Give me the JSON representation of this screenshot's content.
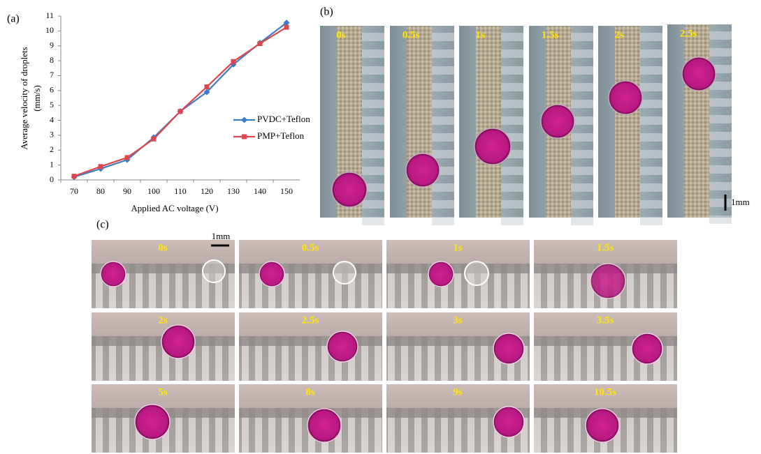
{
  "panel_labels": [
    "(a)",
    "(b)",
    "(c)"
  ],
  "chart_data": {
    "type": "line",
    "xlabel": "Applied AC voltage (V)",
    "ylabel": [
      "Average velocity of droplets",
      "(mm/s)"
    ],
    "categories": [
      "70",
      "80",
      "90",
      "100",
      "110",
      "120",
      "130",
      "140",
      "150"
    ],
    "series": [
      {
        "name": "PVDC+Teflon",
        "color": "#3a7dc9",
        "marker": "diamond",
        "values": [
          0.2,
          0.75,
          1.35,
          2.85,
          4.6,
          5.9,
          7.75,
          9.2,
          10.55
        ]
      },
      {
        "name": "PMP+Teflon",
        "color": "#e0474c",
        "marker": "square",
        "values": [
          0.25,
          0.9,
          1.5,
          2.75,
          4.6,
          6.25,
          7.95,
          9.15,
          10.25
        ]
      }
    ],
    "ylim": [
      0,
      11
    ],
    "yticks": [
      0,
      1,
      2,
      3,
      4,
      5,
      6,
      7,
      8,
      9,
      10,
      11
    ],
    "grid": false
  },
  "panel_b": {
    "times": [
      "0s",
      "0.5s",
      "1s",
      "1.5s",
      "2s",
      "2.5s"
    ],
    "scale": "1mm"
  },
  "panel_c": {
    "times": [
      "0s",
      "0.5s",
      "1s",
      "1.5s",
      "2s",
      "2.5s",
      "3s",
      "3.5s",
      "5s",
      "8s",
      "9s",
      "10.5s"
    ],
    "scale": "1mm"
  }
}
